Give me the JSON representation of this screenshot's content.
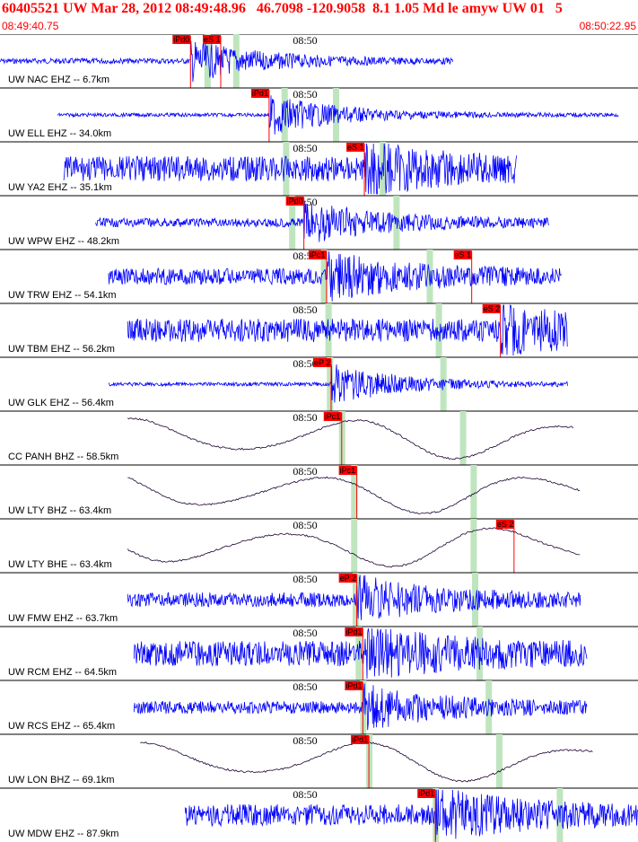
{
  "header": {
    "title": "60405521 UW Mar 28, 2012 08:49:48.96   46.7098 -120.9058  8.1 1.05 Md le amyw UW 01   5",
    "start_time": "08:49:40.75",
    "end_time": "08:50:22.95"
  },
  "colors": {
    "header_text": "#ff0000",
    "trace_eh": "#0000ff",
    "trace_bh": "#1a0030",
    "pick_box": "#ff0000",
    "pick_line": "#ff0000",
    "window_band": "#bfe5bf",
    "separator": "#000000"
  },
  "chart_data": {
    "type": "seismogram",
    "time_range": [
      "08:49:40.75",
      "08:50:22.95"
    ],
    "minute_marker": "08:50",
    "traces": [
      {
        "label": "UW NAC EHZ -- 6.7km",
        "band": "EHZ",
        "picks": [
          {
            "label": "iPd0",
            "t": 12.6
          },
          {
            "label": "eS 1",
            "t": 14.6
          }
        ]
      },
      {
        "label": "UW ELL EHZ -- 34.0km",
        "band": "EHZ",
        "picks": [
          {
            "label": "iPd1",
            "t": 17.8
          }
        ]
      },
      {
        "label": "UW YA2 EHZ -- 35.1km",
        "band": "EHZ",
        "picks": [
          {
            "label": "eS 1",
            "t": 24.1
          }
        ]
      },
      {
        "label": "UW WPW EHZ -- 48.2km",
        "band": "EHZ",
        "picks": [
          {
            "label": "iPd0",
            "t": 20.1
          }
        ]
      },
      {
        "label": "UW TRW EHZ -- 54.1km",
        "band": "EHZ",
        "picks": [
          {
            "label": "iPc1",
            "t": 21.6
          },
          {
            "label": "eS 1",
            "t": 31.2
          }
        ]
      },
      {
        "label": "UW TBM EHZ -- 56.2km",
        "band": "EHZ",
        "picks": [
          {
            "label": "eS 2",
            "t": 33.1
          }
        ]
      },
      {
        "label": "UW GLK EHZ -- 56.4km",
        "band": "EHZ",
        "picks": [
          {
            "label": "eP 2",
            "t": 21.9
          }
        ]
      },
      {
        "label": "CC PANH BHZ -- 58.5km",
        "band": "BHZ",
        "picks": [
          {
            "label": "iPc1",
            "t": 22.6
          }
        ]
      },
      {
        "label": "UW LTY BHZ -- 63.4km",
        "band": "BHZ",
        "picks": [
          {
            "label": "iPc1",
            "t": 23.6
          }
        ]
      },
      {
        "label": "UW LTY BHE -- 63.4km",
        "band": "BHE",
        "picks": [
          {
            "label": "eS 2",
            "t": 34.0
          }
        ]
      },
      {
        "label": "UW FMW EHZ -- 63.7km",
        "band": "EHZ",
        "picks": [
          {
            "label": "eP 2",
            "t": 23.6
          }
        ]
      },
      {
        "label": "UW RCM EHZ -- 64.5km",
        "band": "EHZ",
        "picks": [
          {
            "label": "iPd1",
            "t": 24.0
          }
        ]
      },
      {
        "label": "UW RCS EHZ -- 65.4km",
        "band": "EHZ",
        "picks": [
          {
            "label": "iPd1",
            "t": 24.0
          }
        ]
      },
      {
        "label": "UW LON BHZ -- 69.1km",
        "band": "BHZ",
        "picks": [
          {
            "label": "iPd1",
            "t": 24.4
          }
        ]
      },
      {
        "label": "UW MDW EHZ -- 87.9km",
        "band": "EHZ",
        "picks": [
          {
            "label": "iPd1",
            "t": 28.8
          }
        ]
      }
    ]
  }
}
